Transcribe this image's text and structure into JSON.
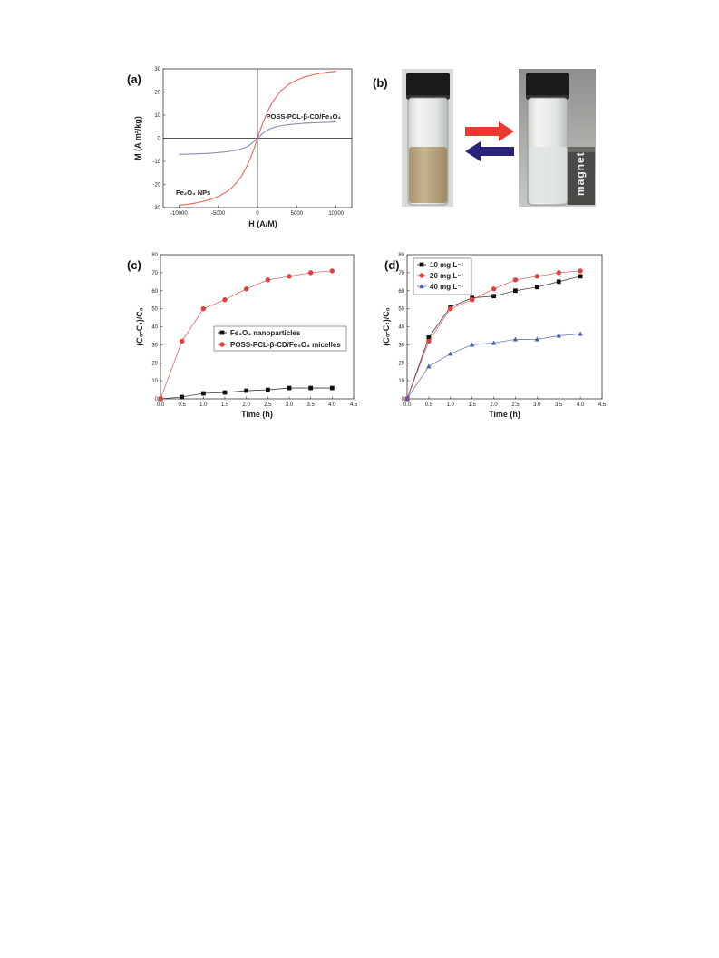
{
  "figure": {
    "panel_labels": [
      "(a)",
      "(b)",
      "(c)",
      "(d)"
    ]
  },
  "photo": {
    "magnet_label": "magnet",
    "colors": {
      "red_arrow": "#e83a2f",
      "blue_arrow": "#2a237a",
      "cap": "#1a1a1a",
      "suspension": "#b9a682",
      "magnet": "#4a4a46"
    }
  },
  "chart_data": [
    {
      "id": "a",
      "type": "line",
      "title": "",
      "xlabel": "H (A/M)",
      "ylabel": "M (A m²/kg)",
      "xlim": [
        -12000,
        12000
      ],
      "ylim": [
        -30,
        30
      ],
      "xticks": [
        -10000,
        -5000,
        0,
        5000,
        10000
      ],
      "yticks": [
        -30,
        -20,
        -10,
        0,
        10,
        20,
        30
      ],
      "grid": false,
      "axes_through_origin": true,
      "annotations": [
        "Fe₃O₄ NPs",
        "POSS-PCL-β-CD/Fe₃O₄"
      ],
      "series": [
        {
          "name": "Fe₃O₄ NPs",
          "color": "#e8685f",
          "x": [
            -10000,
            -9000,
            -8000,
            -7000,
            -6000,
            -5000,
            -4000,
            -3000,
            -2000,
            -1500,
            -1000,
            -500,
            0,
            500,
            1000,
            1500,
            2000,
            3000,
            4000,
            5000,
            6000,
            7000,
            8000,
            9000,
            10000
          ],
          "y": [
            -29,
            -28.6,
            -28.1,
            -27.4,
            -26.5,
            -25.2,
            -23.4,
            -20.6,
            -16.2,
            -13.1,
            -9.4,
            -5,
            0,
            5,
            9.4,
            13.1,
            16.2,
            20.6,
            23.4,
            25.2,
            26.5,
            27.4,
            28.1,
            28.6,
            29
          ]
        },
        {
          "name": "POSS-PCL-β-CD/Fe₃O₄",
          "color": "#8c8cb8",
          "x": [
            -10000,
            -8000,
            -6000,
            -4000,
            -3000,
            -2000,
            -1500,
            -1000,
            -500,
            0,
            500,
            1000,
            1500,
            2000,
            3000,
            4000,
            6000,
            8000,
            10000
          ],
          "y": [
            -7,
            -6.8,
            -6.5,
            -5.9,
            -5.4,
            -4.6,
            -3.9,
            -3,
            -1.6,
            0,
            1.6,
            3,
            3.9,
            4.6,
            5.4,
            5.9,
            6.5,
            6.8,
            7
          ]
        }
      ]
    },
    {
      "id": "c",
      "type": "line",
      "title": "",
      "xlabel": "Time (h)",
      "ylabel": "(C₀-Cₜ)/C₀",
      "xlim": [
        0,
        4.5
      ],
      "ylim": [
        0,
        80
      ],
      "xticks": [
        0.0,
        0.5,
        1.0,
        1.5,
        2.0,
        2.5,
        3.0,
        3.5,
        4.0,
        4.5
      ],
      "yticks": [
        0,
        10,
        20,
        30,
        40,
        50,
        60,
        70,
        80
      ],
      "grid": false,
      "legend": "center-right",
      "x": [
        0,
        0.5,
        1.0,
        1.5,
        2.0,
        2.5,
        3.0,
        3.5,
        4.0
      ],
      "series": [
        {
          "name": "Fe₃O₄ nanoparticles",
          "color": "#111111",
          "marker": "square",
          "values": [
            0,
            1,
            3,
            3.5,
            4.5,
            5,
            6,
            6,
            6
          ]
        },
        {
          "name": "POSS-PCL-β-CD/Fe₃O₄ micelles",
          "color": "#e04040",
          "marker": "circle",
          "values": [
            0,
            32,
            50,
            55,
            61,
            66,
            68,
            70,
            71
          ]
        }
      ]
    },
    {
      "id": "d",
      "type": "line",
      "title": "",
      "xlabel": "Time (h)",
      "ylabel": "(C₀-Cₜ)/C₀",
      "xlim": [
        0,
        4.5
      ],
      "ylim": [
        0,
        80
      ],
      "xticks": [
        0.0,
        0.5,
        1.0,
        1.5,
        2.0,
        2.5,
        3.0,
        3.5,
        4.0,
        4.5
      ],
      "yticks": [
        0,
        10,
        20,
        30,
        40,
        50,
        60,
        70,
        80
      ],
      "grid": false,
      "legend": "top-left",
      "x": [
        0,
        0.5,
        1.0,
        1.5,
        2.0,
        2.5,
        3.0,
        3.5,
        4.0
      ],
      "series": [
        {
          "name": "10 mg L⁻¹",
          "color": "#111111",
          "marker": "square",
          "values": [
            0,
            34,
            51,
            56,
            57,
            60,
            62,
            65,
            68
          ]
        },
        {
          "name": "20 mg L⁻¹",
          "color": "#e04040",
          "marker": "circle",
          "values": [
            0,
            32,
            50,
            55,
            61,
            66,
            68,
            70,
            71
          ]
        },
        {
          "name": "40 mg L⁻¹",
          "color": "#4a5fb0",
          "marker": "triangle",
          "values": [
            0,
            18,
            25,
            30,
            31,
            33,
            33,
            35,
            36
          ]
        }
      ]
    }
  ]
}
